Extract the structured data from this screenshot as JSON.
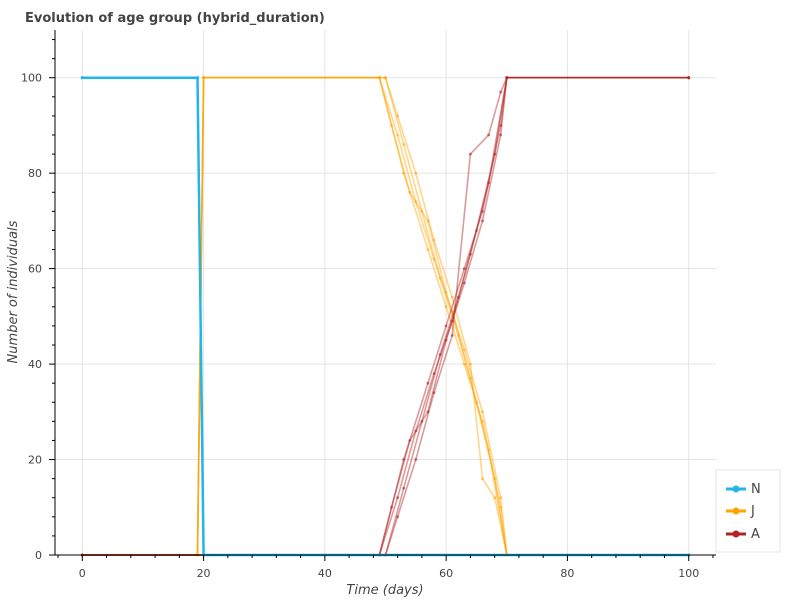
{
  "chart_data": {
    "type": "line",
    "title": "Evolution of age group (hybrid_duration)",
    "xlabel": "Time (days)",
    "ylabel": "Number of individuals",
    "xlim": [
      -4.5,
      104.5
    ],
    "ylim": [
      0,
      110
    ],
    "x_ticks": [
      0,
      20,
      40,
      60,
      80,
      100
    ],
    "y_ticks": [
      0,
      20,
      40,
      60,
      80,
      100
    ],
    "grid": true,
    "legend_position": "bottom-right",
    "series": [
      {
        "name": "N",
        "color": "#1fb7ea",
        "runs": [
          {
            "x": [
              0,
              19,
              20,
              100
            ],
            "y": [
              100,
              100,
              0,
              0
            ]
          }
        ]
      },
      {
        "name": "J",
        "color": "#ffa500",
        "runs": [
          {
            "x": [
              0,
              19,
              20,
              49,
              52,
              55,
              58,
              61,
              64,
              67,
              70,
              100
            ],
            "y": [
              0,
              0,
              100,
              100,
              88,
              74,
              62,
              51,
              37,
              22,
              0,
              0
            ]
          },
          {
            "x": [
              0,
              19,
              20,
              50,
              53,
              56,
              59,
              62,
              65,
              68,
              70,
              100
            ],
            "y": [
              0,
              0,
              100,
              100,
              86,
              72,
              58,
              46,
              32,
              16,
              0,
              0
            ]
          },
          {
            "x": [
              0,
              19,
              20,
              49,
              51,
              54,
              57,
              60,
              63,
              66,
              69,
              70,
              100
            ],
            "y": [
              0,
              0,
              100,
              100,
              90,
              76,
              70,
              55,
              43,
              30,
              12,
              0,
              0
            ]
          },
          {
            "x": [
              0,
              19,
              20,
              50,
              52,
              55,
              58,
              61,
              64,
              66,
              68,
              70,
              100
            ],
            "y": [
              0,
              0,
              100,
              100,
              92,
              80,
              66,
              54,
              40,
              16,
              12,
              0,
              0
            ]
          },
          {
            "x": [
              0,
              19,
              20,
              49,
              53,
              57,
              60,
              63,
              66,
              69,
              70,
              100
            ],
            "y": [
              0,
              0,
              100,
              100,
              80,
              64,
              52,
              40,
              28,
              10,
              0,
              0
            ]
          }
        ]
      },
      {
        "name": "A",
        "color": "#b22222",
        "runs": [
          {
            "x": [
              0,
              49,
              52,
              55,
              58,
              61,
              64,
              67,
              70,
              100
            ],
            "y": [
              0,
              0,
              12,
              26,
              38,
              49,
              63,
              78,
              100,
              100
            ]
          },
          {
            "x": [
              0,
              50,
              53,
              56,
              59,
              62,
              65,
              68,
              70,
              100
            ],
            "y": [
              0,
              0,
              14,
              28,
              42,
              54,
              68,
              84,
              100,
              100
            ]
          },
          {
            "x": [
              0,
              49,
              51,
              54,
              57,
              60,
              63,
              66,
              69,
              70,
              100
            ],
            "y": [
              0,
              0,
              10,
              24,
              30,
              45,
              57,
              70,
              88,
              100,
              100
            ]
          },
          {
            "x": [
              0,
              50,
              52,
              55,
              58,
              61,
              64,
              67,
              69,
              70,
              100
            ],
            "y": [
              0,
              0,
              8,
              20,
              34,
              46,
              84,
              88,
              97,
              100,
              100
            ]
          },
          {
            "x": [
              0,
              49,
              53,
              57,
              60,
              63,
              66,
              69,
              70,
              100
            ],
            "y": [
              0,
              0,
              20,
              36,
              48,
              60,
              72,
              90,
              100,
              100
            ]
          }
        ]
      }
    ]
  }
}
